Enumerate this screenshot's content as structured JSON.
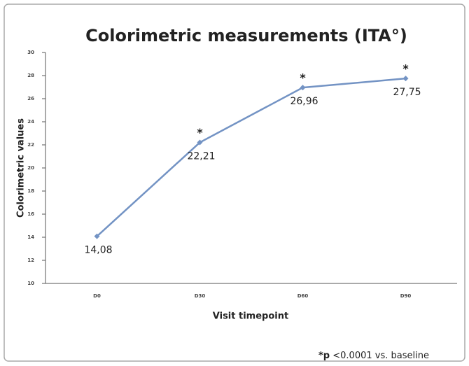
{
  "chart_data": {
    "type": "line",
    "title": "Colorimetric measurements (ITA°)",
    "x_label": "Visit timepoint",
    "y_label": "Colorimetric values",
    "categories": [
      "D0",
      "D30",
      "D60",
      "D90"
    ],
    "series": [
      {
        "name": null,
        "color": "#7393c4",
        "values": [
          14.08,
          22.21,
          26.96,
          27.75
        ],
        "value_labels": [
          "14,08",
          "22,21",
          "26,96",
          "27,75"
        ],
        "significance_labels": [
          null,
          "*",
          "*",
          "*"
        ]
      }
    ],
    "ylim": [
      10,
      30
    ],
    "yticks": [
      10,
      12,
      14,
      16,
      18,
      20,
      22,
      24,
      26,
      28,
      30
    ],
    "footnote": {
      "bold": "*p",
      "text": "<0.0001 vs. baseline"
    }
  }
}
